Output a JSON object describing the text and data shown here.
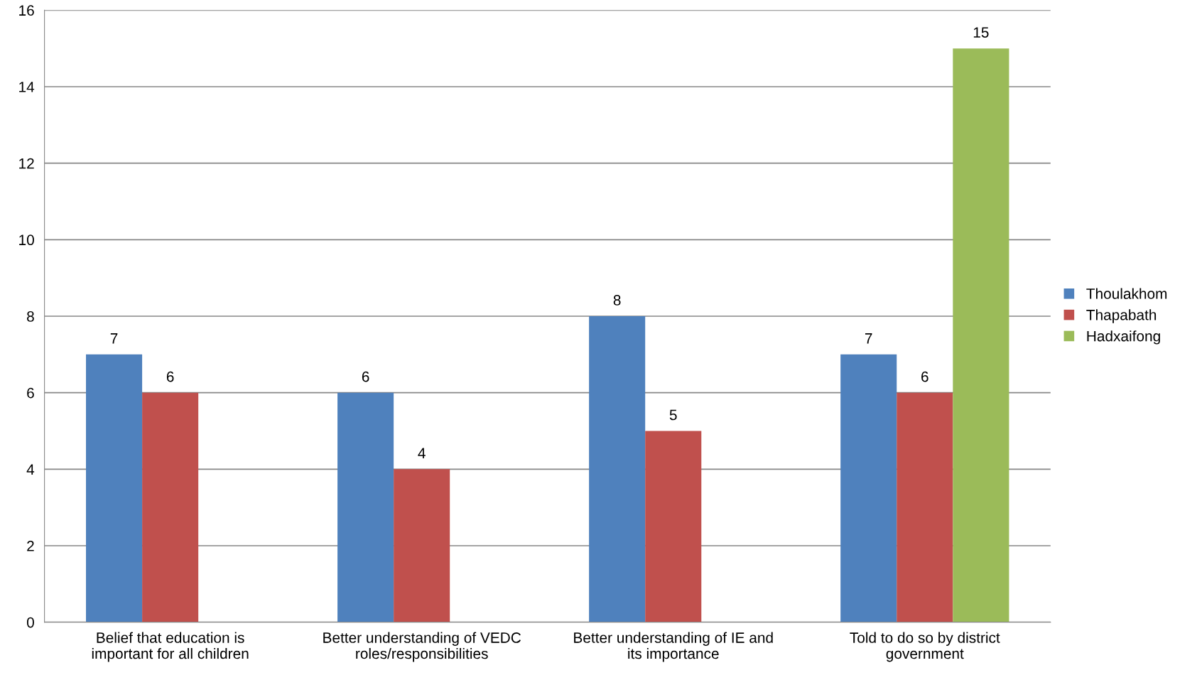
{
  "chart_data": {
    "type": "bar",
    "categories": [
      "Belief that education is\nimportant for all children",
      "Better understanding of VEDC\nroles/responsibilities",
      "Better understanding of IE and\nits importance",
      "Told to do so by district\ngovernment"
    ],
    "series": [
      {
        "name": "Thoulakhom",
        "color": "#4f81bd",
        "values": [
          7,
          6,
          8,
          7
        ]
      },
      {
        "name": "Thapabath",
        "color": "#c0504d",
        "values": [
          6,
          4,
          5,
          6
        ]
      },
      {
        "name": "Hadxaifong",
        "color": "#9bbb59",
        "values": [
          null,
          null,
          null,
          15
        ]
      }
    ],
    "ylim": [
      0,
      16
    ],
    "yticks": [
      0,
      2,
      4,
      6,
      8,
      10,
      12,
      14,
      16
    ],
    "grid": "y",
    "legend": "right",
    "data_labels": true
  }
}
